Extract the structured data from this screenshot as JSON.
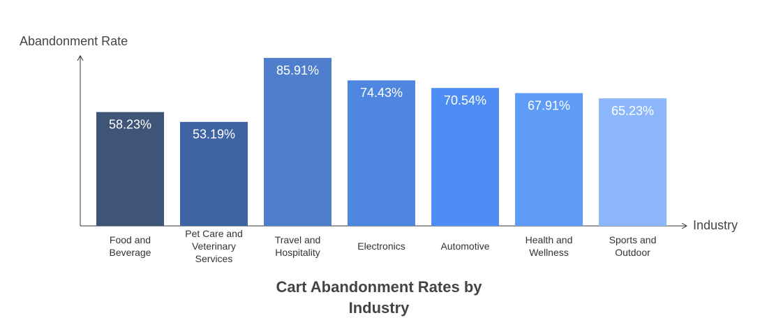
{
  "chart_data": {
    "type": "bar",
    "title": "Cart Abandonment Rates by Industry",
    "x_label": "Industry",
    "y_label": "Abandonment Rate",
    "categories": [
      "Food and Beverage",
      "Pet Care and Veterinary Services",
      "Travel and Hospitality",
      "Electronics",
      "Automotive",
      "Health and Wellness",
      "Sports and Outdoor"
    ],
    "values": [
      58.23,
      53.19,
      85.91,
      74.43,
      70.54,
      67.91,
      65.23
    ],
    "value_labels": [
      "58.23%",
      "53.19%",
      "85.91%",
      "74.43%",
      "70.54%",
      "67.91%",
      "65.23%"
    ],
    "colors": [
      "#3f5577",
      "#3f64a3",
      "#4f7fcc",
      "#4f86e0",
      "#4e8ef4",
      "#5e9cf7",
      "#8cb8fb"
    ],
    "ylim": [
      0,
      87
    ],
    "grid": false
  }
}
